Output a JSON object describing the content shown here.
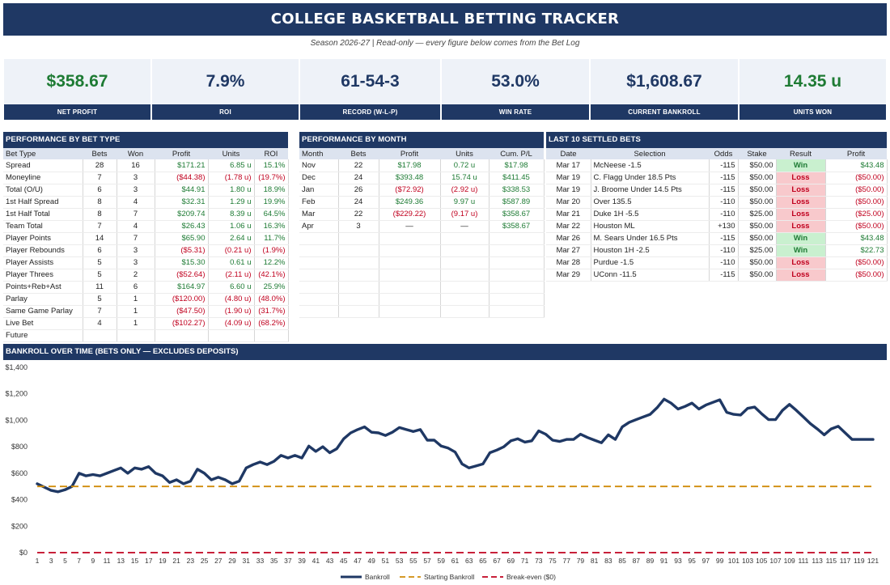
{
  "header": {
    "title": "COLLEGE BASKETBALL BETTING TRACKER",
    "subtitle": "Season 2026-27   |   Read-only — every figure below comes from the Bet Log"
  },
  "kpis": [
    {
      "value": "$358.67",
      "label": "NET PROFIT",
      "color": "#1e7b34"
    },
    {
      "value": "7.9%",
      "label": "ROI",
      "color": "#1f3864"
    },
    {
      "value": "61-54-3",
      "label": "RECORD (W-L-P)",
      "color": "#1f3864"
    },
    {
      "value": "53.0%",
      "label": "WIN RATE",
      "color": "#1f3864"
    },
    {
      "value": "$1,608.67",
      "label": "CURRENT BANKROLL",
      "color": "#1f3864"
    },
    {
      "value": "14.35 u",
      "label": "UNITS WON",
      "color": "#1e7b34"
    }
  ],
  "bet_type": {
    "title": "PERFORMANCE BY BET TYPE",
    "columns": [
      "Bet Type",
      "Bets",
      "Won",
      "Profit",
      "Units",
      "ROI"
    ],
    "rows": [
      {
        "type": "Spread",
        "bets": "28",
        "won": "16",
        "profit": "$171.21",
        "units": "6.85 u",
        "roi": "15.1%",
        "sign": "pos"
      },
      {
        "type": "Moneyline",
        "bets": "7",
        "won": "3",
        "profit": "($44.38)",
        "units": "(1.78 u)",
        "roi": "(19.7%)",
        "sign": "neg"
      },
      {
        "type": "Total (O/U)",
        "bets": "6",
        "won": "3",
        "profit": "$44.91",
        "units": "1.80 u",
        "roi": "18.9%",
        "sign": "pos"
      },
      {
        "type": "1st Half Spread",
        "bets": "8",
        "won": "4",
        "profit": "$32.31",
        "units": "1.29 u",
        "roi": "19.9%",
        "sign": "pos"
      },
      {
        "type": "1st Half Total",
        "bets": "8",
        "won": "7",
        "profit": "$209.74",
        "units": "8.39 u",
        "roi": "64.5%",
        "sign": "pos"
      },
      {
        "type": "Team Total",
        "bets": "7",
        "won": "4",
        "profit": "$26.43",
        "units": "1.06 u",
        "roi": "16.3%",
        "sign": "pos"
      },
      {
        "type": "Player Points",
        "bets": "14",
        "won": "7",
        "profit": "$65.90",
        "units": "2.64 u",
        "roi": "11.7%",
        "sign": "pos"
      },
      {
        "type": "Player Rebounds",
        "bets": "6",
        "won": "3",
        "profit": "($5.31)",
        "units": "(0.21 u)",
        "roi": "(1.9%)",
        "sign": "neg"
      },
      {
        "type": "Player Assists",
        "bets": "5",
        "won": "3",
        "profit": "$15.30",
        "units": "0.61 u",
        "roi": "12.2%",
        "sign": "pos"
      },
      {
        "type": "Player Threes",
        "bets": "5",
        "won": "2",
        "profit": "($52.64)",
        "units": "(2.11 u)",
        "roi": "(42.1%)",
        "sign": "neg"
      },
      {
        "type": "Points+Reb+Ast",
        "bets": "11",
        "won": "6",
        "profit": "$164.97",
        "units": "6.60 u",
        "roi": "25.9%",
        "sign": "pos"
      },
      {
        "type": "Parlay",
        "bets": "5",
        "won": "1",
        "profit": "($120.00)",
        "units": "(4.80 u)",
        "roi": "(48.0%)",
        "sign": "neg"
      },
      {
        "type": "Same Game Parlay",
        "bets": "7",
        "won": "1",
        "profit": "($47.50)",
        "units": "(1.90 u)",
        "roi": "(31.7%)",
        "sign": "neg"
      },
      {
        "type": "Live Bet",
        "bets": "4",
        "won": "1",
        "profit": "($102.27)",
        "units": "(4.09 u)",
        "roi": "(68.2%)",
        "sign": "neg"
      },
      {
        "type": "Future",
        "bets": "",
        "won": "",
        "profit": "",
        "units": "",
        "roi": "",
        "sign": "blk"
      }
    ]
  },
  "by_month": {
    "title": "PERFORMANCE BY MONTH",
    "columns": [
      "Month",
      "Bets",
      "Profit",
      "Units",
      "Cum. P/L"
    ],
    "rows": [
      {
        "month": "Nov",
        "bets": "22",
        "profit": "$17.98",
        "units": "0.72 u",
        "cum": "$17.98",
        "sign": "pos"
      },
      {
        "month": "Dec",
        "bets": "24",
        "profit": "$393.48",
        "units": "15.74 u",
        "cum": "$411.45",
        "sign": "pos"
      },
      {
        "month": "Jan",
        "bets": "26",
        "profit": "($72.92)",
        "units": "(2.92 u)",
        "cum": "$338.53",
        "sign": "neg"
      },
      {
        "month": "Feb",
        "bets": "24",
        "profit": "$249.36",
        "units": "9.97 u",
        "cum": "$587.89",
        "sign": "pos"
      },
      {
        "month": "Mar",
        "bets": "22",
        "profit": "($229.22)",
        "units": "(9.17 u)",
        "cum": "$358.67",
        "sign": "neg"
      },
      {
        "month": "Apr",
        "bets": "3",
        "profit": "—",
        "units": "—",
        "cum": "$358.67",
        "sign": "dash"
      }
    ]
  },
  "last10": {
    "title": "LAST 10 SETTLED BETS",
    "columns": [
      "Date",
      "Selection",
      "Odds",
      "Stake",
      "Result",
      "Profit"
    ],
    "rows": [
      {
        "date": "Mar 17",
        "selection": "McNeese -1.5",
        "odds": "-115",
        "stake": "$50.00",
        "result": "Win",
        "profit": "$43.48"
      },
      {
        "date": "Mar 19",
        "selection": "C. Flagg Under 18.5 Pts",
        "odds": "-115",
        "stake": "$50.00",
        "result": "Loss",
        "profit": "($50.00)"
      },
      {
        "date": "Mar 19",
        "selection": "J. Broome Under 14.5 Pts",
        "odds": "-115",
        "stake": "$50.00",
        "result": "Loss",
        "profit": "($50.00)"
      },
      {
        "date": "Mar 20",
        "selection": "Over 135.5",
        "odds": "-110",
        "stake": "$50.00",
        "result": "Loss",
        "profit": "($50.00)"
      },
      {
        "date": "Mar 21",
        "selection": "Duke 1H -5.5",
        "odds": "-110",
        "stake": "$25.00",
        "result": "Loss",
        "profit": "($25.00)"
      },
      {
        "date": "Mar 22",
        "selection": "Houston ML",
        "odds": "+130",
        "stake": "$50.00",
        "result": "Loss",
        "profit": "($50.00)"
      },
      {
        "date": "Mar 26",
        "selection": "M. Sears Under 16.5 Pts",
        "odds": "-115",
        "stake": "$50.00",
        "result": "Win",
        "profit": "$43.48"
      },
      {
        "date": "Mar 27",
        "selection": "Houston 1H -2.5",
        "odds": "-110",
        "stake": "$25.00",
        "result": "Win",
        "profit": "$22.73"
      },
      {
        "date": "Mar 28",
        "selection": "Purdue -1.5",
        "odds": "-110",
        "stake": "$50.00",
        "result": "Loss",
        "profit": "($50.00)"
      },
      {
        "date": "Mar 29",
        "selection": "UConn -11.5",
        "odds": "-115",
        "stake": "$50.00",
        "result": "Loss",
        "profit": "($50.00)"
      }
    ]
  },
  "chart_head": "BANKROLL OVER TIME  (BETS ONLY — EXCLUDES DEPOSITS)",
  "chart_data": {
    "type": "line",
    "title": "",
    "xlabel": "",
    "ylabel": "",
    "xlim": [
      1,
      121
    ],
    "ylim": [
      0,
      1400
    ],
    "y_ticks": [
      0,
      200,
      400,
      600,
      800,
      1000,
      1200,
      1400
    ],
    "y_tick_labels": [
      "$0",
      "$200",
      "$400",
      "$600",
      "$800",
      "$1,000",
      "$1,200",
      "$1,400"
    ],
    "x_tick_labels": [
      1,
      3,
      5,
      7,
      9,
      11,
      13,
      15,
      17,
      19,
      21,
      23,
      25,
      27,
      29,
      31,
      33,
      35,
      37,
      39,
      41,
      43,
      45,
      47,
      49,
      51,
      53,
      55,
      57,
      59,
      61,
      63,
      65,
      67,
      69,
      71,
      73,
      75,
      77,
      79,
      81,
      83,
      85,
      87,
      89,
      91,
      93,
      95,
      97,
      99,
      101,
      103,
      105,
      107,
      109,
      111,
      113,
      115,
      117,
      119,
      121
    ],
    "grid": false,
    "legend_position": "bottom",
    "series": [
      {
        "name": "Bankroll",
        "color": "#1f3864",
        "style": "solid",
        "x": [
          1,
          2,
          3,
          4,
          5,
          6,
          7,
          8,
          9,
          10,
          11,
          12,
          13,
          14,
          15,
          16,
          17,
          18,
          19,
          20,
          21,
          22,
          23,
          24,
          25,
          26,
          27,
          28,
          29,
          30,
          31,
          32,
          33,
          34,
          35,
          36,
          37,
          38,
          39,
          40,
          41,
          42,
          43,
          44,
          45,
          46,
          47,
          48,
          49,
          50,
          51,
          52,
          53,
          54,
          55,
          56,
          57,
          58,
          59,
          60,
          61,
          62,
          63,
          64,
          65,
          66,
          67,
          68,
          69,
          70,
          71,
          72,
          73,
          74,
          75,
          76,
          77,
          78,
          79,
          80,
          81,
          82,
          83,
          84,
          85,
          86,
          87,
          88,
          89,
          90,
          91,
          92,
          93,
          94,
          95,
          96,
          97,
          98,
          99,
          100,
          101,
          102,
          103,
          104,
          105,
          106,
          107,
          108,
          109,
          110,
          111,
          112,
          113,
          114,
          115,
          116,
          117,
          118,
          119,
          120,
          121
        ],
        "y": [
          520,
          495,
          470,
          460,
          475,
          500,
          600,
          580,
          590,
          580,
          600,
          620,
          640,
          600,
          640,
          630,
          650,
          600,
          580,
          530,
          550,
          520,
          540,
          630,
          600,
          550,
          570,
          550,
          520,
          540,
          640,
          665,
          685,
          665,
          690,
          735,
          715,
          735,
          715,
          805,
          765,
          800,
          755,
          785,
          860,
          905,
          930,
          950,
          910,
          905,
          885,
          910,
          945,
          930,
          915,
          930,
          850,
          850,
          805,
          790,
          760,
          670,
          640,
          655,
          670,
          755,
          775,
          800,
          845,
          860,
          835,
          845,
          920,
          895,
          850,
          840,
          855,
          855,
          895,
          870,
          850,
          830,
          890,
          855,
          950,
          985,
          1005,
          1025,
          1045,
          1095,
          1160,
          1130,
          1085,
          1105,
          1130,
          1085,
          1115,
          1135,
          1155,
          1060,
          1045,
          1040,
          1090,
          1100,
          1050,
          1005,
          1005,
          1075,
          1120,
          1075,
          1025,
          975,
          935,
          890,
          935,
          955,
          905,
          855,
          855,
          855,
          855
        ]
      },
      {
        "name": "Starting Bankroll",
        "color": "#d08c0a",
        "style": "dashed",
        "x": [
          1,
          121
        ],
        "y": [
          500,
          500
        ]
      },
      {
        "name": "Break-even ($0)",
        "color": "#c0001e",
        "style": "dashed",
        "x": [
          1,
          121
        ],
        "y": [
          0,
          0
        ]
      }
    ]
  }
}
